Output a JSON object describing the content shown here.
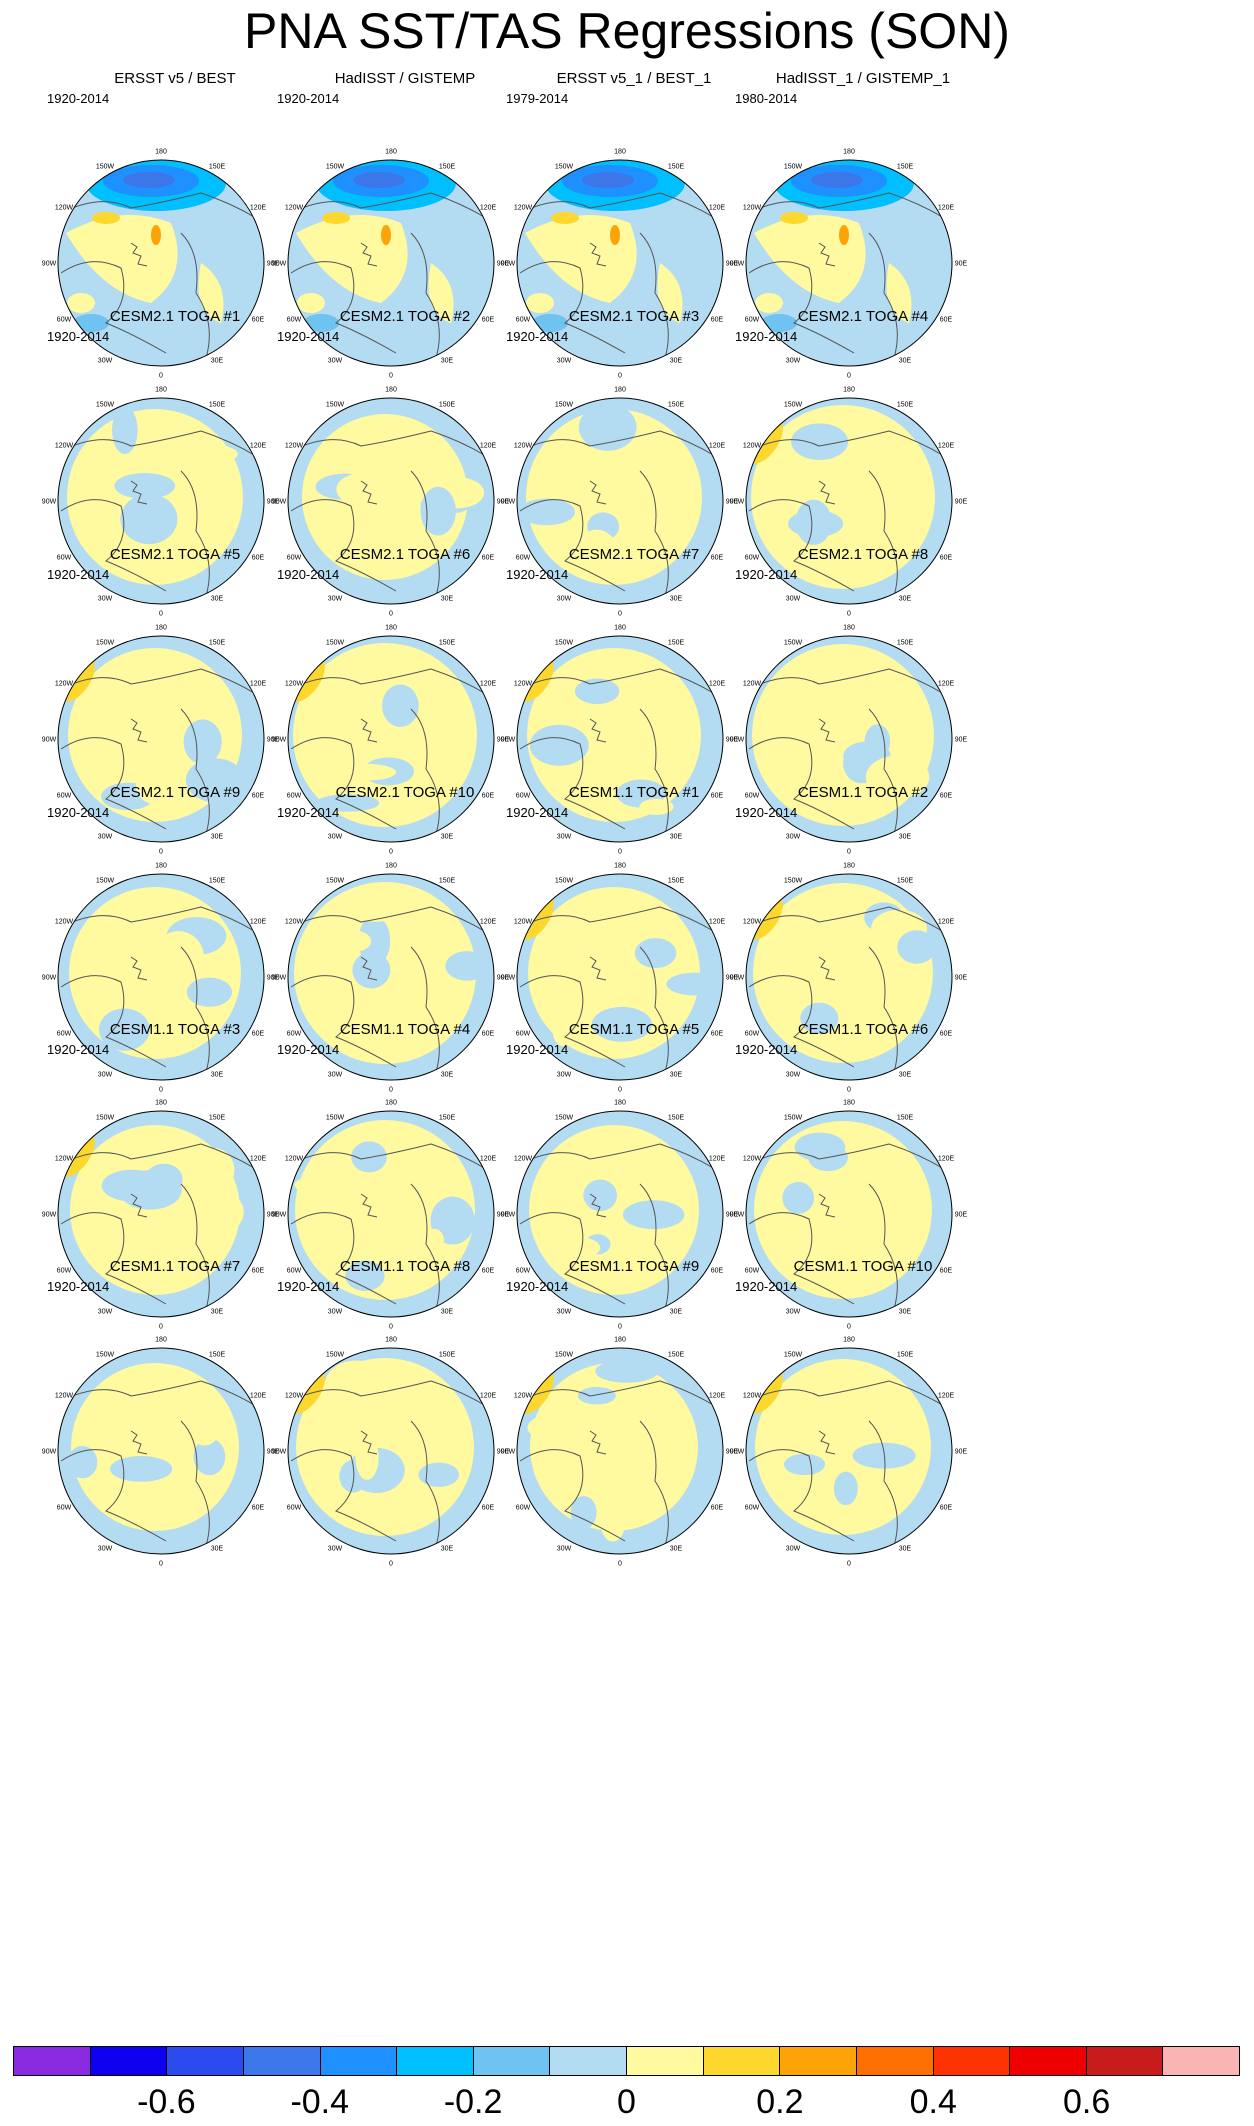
{
  "title": "PNA SST/TAS Regressions (SON)",
  "longitude_labels": [
    "180",
    "150E",
    "120E",
    "90E",
    "60E",
    "30E",
    "0",
    "30W",
    "60W",
    "90W",
    "120W",
    "150W"
  ],
  "panels": [
    {
      "title": "ERSST v5 / BEST",
      "period": "1920-2014",
      "pattern": "obs_strong"
    },
    {
      "title": "HadISST / GISTEMP",
      "period": "1920-2014",
      "pattern": "obs_strong"
    },
    {
      "title": "ERSST v5_1 / BEST_1",
      "period": "1979-2014",
      "pattern": "obs_strong"
    },
    {
      "title": "HadISST_1 / GISTEMP_1",
      "period": "1980-2014",
      "pattern": "obs_strong"
    },
    {
      "title": "CESM2.1 TOGA #1",
      "period": "1920-2014",
      "pattern": "model"
    },
    {
      "title": "CESM2.1 TOGA #2",
      "period": "1920-2014",
      "pattern": "model"
    },
    {
      "title": "CESM2.1 TOGA #3",
      "period": "1920-2014",
      "pattern": "model"
    },
    {
      "title": "CESM2.1 TOGA #4",
      "period": "1920-2014",
      "pattern": "model"
    },
    {
      "title": "CESM2.1 TOGA #5",
      "period": "1920-2014",
      "pattern": "model"
    },
    {
      "title": "CESM2.1 TOGA #6",
      "period": "1920-2014",
      "pattern": "model"
    },
    {
      "title": "CESM2.1 TOGA #7",
      "period": "1920-2014",
      "pattern": "model"
    },
    {
      "title": "CESM2.1 TOGA #8",
      "period": "1920-2014",
      "pattern": "model"
    },
    {
      "title": "CESM2.1 TOGA #9",
      "period": "1920-2014",
      "pattern": "model"
    },
    {
      "title": "CESM2.1 TOGA #10",
      "period": "1920-2014",
      "pattern": "model"
    },
    {
      "title": "CESM1.1 TOGA #1",
      "period": "1920-2014",
      "pattern": "model"
    },
    {
      "title": "CESM1.1 TOGA #2",
      "period": "1920-2014",
      "pattern": "model"
    },
    {
      "title": "CESM1.1 TOGA #3",
      "period": "1920-2014",
      "pattern": "model"
    },
    {
      "title": "CESM1.1 TOGA #4",
      "period": "1920-2014",
      "pattern": "model"
    },
    {
      "title": "CESM1.1 TOGA #5",
      "period": "1920-2014",
      "pattern": "model"
    },
    {
      "title": "CESM1.1 TOGA #6",
      "period": "1920-2014",
      "pattern": "model"
    },
    {
      "title": "CESM1.1 TOGA #7",
      "period": "1920-2014",
      "pattern": "model"
    },
    {
      "title": "CESM1.1 TOGA #8",
      "period": "1920-2014",
      "pattern": "model"
    },
    {
      "title": "CESM1.1 TOGA #9",
      "period": "1920-2014",
      "pattern": "model"
    },
    {
      "title": "CESM1.1 TOGA #10",
      "period": "1920-2014",
      "pattern": "model"
    }
  ],
  "colorbar": {
    "colors": [
      "#8a2be2",
      "#0f00f0",
      "#2b4bee",
      "#3c77ea",
      "#1e90ff",
      "#00bfff",
      "#6ec3f0",
      "#b3dbf2",
      "#fff9a0",
      "#fcd82e",
      "#fca407",
      "#fc6f00",
      "#fc3200",
      "#ee0000",
      "#c81c1c",
      "#fbb4b4"
    ],
    "labels": [
      "-0.6",
      "-0.4",
      "-0.2",
      "0",
      "0.2",
      "0.4",
      "0.6"
    ]
  }
}
